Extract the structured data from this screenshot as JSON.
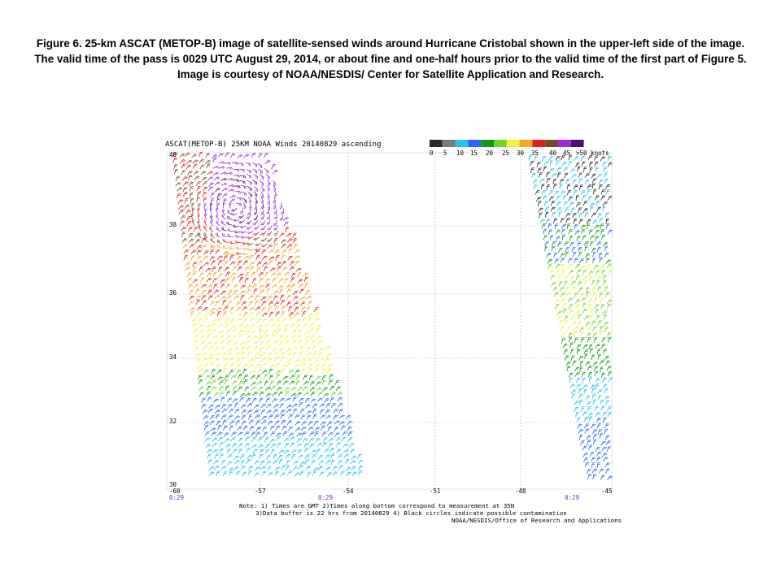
{
  "caption": "Figure 6.  25-km ASCAT (METOP-B) image of satellite-sensed winds around Hurricane Cristobal shown in the upper-left side of the image.  The valid time of the pass is 0029 UTC August 29, 2014, or about fine and one-half hours prior to the valid time of the first part of Figure 5.  Image is courtesy of NOAA/NESDIS/ Center for Satellite Application and Research.",
  "map": {
    "title": "ASCAT(METOP-B) 25KM NOAA Winds 20140829 ascending",
    "lat_labels": [
      "40",
      "38",
      "36",
      "34",
      "32",
      "30"
    ],
    "lon_labels": [
      "-60",
      "-57",
      "-54",
      "-51",
      "-48",
      "-45"
    ],
    "time_labels": [
      "0:29",
      "0:29",
      "0:29"
    ],
    "legend": {
      "labels": [
        "0",
        "5",
        "10",
        "15",
        "20",
        "25",
        "30",
        "35",
        "40",
        "45",
        ">50 knots"
      ],
      "colors": [
        "#2a2a2a",
        "#7b7b7b",
        "#23c4ee",
        "#2a66ff",
        "#119a11",
        "#6fd32a",
        "#f2f23a",
        "#f5a623",
        "#e21f1f",
        "#7a4b2a",
        "#9b2bd6",
        "#4b0f70"
      ]
    },
    "notes": [
      "Note: 1) Times are GMT 2)Times along bottom correspond to measurement at 35N",
      "3)Data buffer is 22 hrs from 20140829 4) Black circles indicate possible contamination",
      "NOAA/NESDIS/Office of Research and Applications"
    ]
  }
}
